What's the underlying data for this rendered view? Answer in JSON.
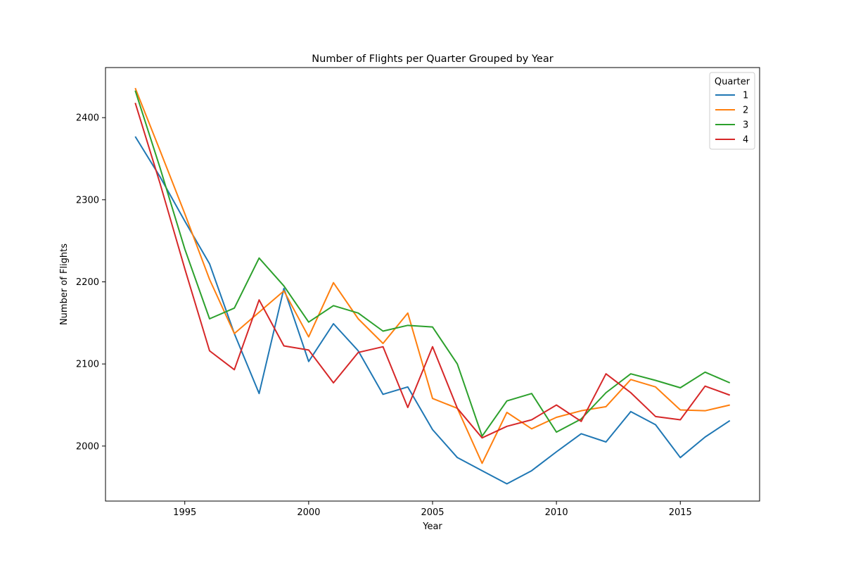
{
  "chart_data": {
    "type": "line",
    "title": "Number of Flights per Quarter Grouped by Year",
    "xlabel": "Year",
    "ylabel": "Number of Flights",
    "x": [
      1993,
      1994,
      1995,
      1996,
      1997,
      1998,
      1999,
      2000,
      2001,
      2002,
      2003,
      2004,
      2005,
      2006,
      2007,
      2008,
      2009,
      2010,
      2011,
      2012,
      2013,
      2014,
      2015,
      2016,
      2017
    ],
    "xlim": [
      1991.8,
      2018.2
    ],
    "ylim": [
      1933,
      2461
    ],
    "xticks": [
      1995,
      2000,
      2005,
      2010,
      2015
    ],
    "yticks": [
      2000,
      2100,
      2200,
      2300,
      2400
    ],
    "grid": false,
    "legend": {
      "title": "Quarter",
      "position": "upper right"
    },
    "series": [
      {
        "name": "1",
        "color": "#1f77b4",
        "values": [
          2377,
          2328,
          2274,
          2222,
          2137,
          2064,
          2192,
          2103,
          2149,
          2116,
          2063,
          2072,
          2020,
          1986,
          1970,
          1954,
          1970,
          1993,
          2015,
          2005,
          2042,
          2026,
          1986,
          2011,
          2031
        ]
      },
      {
        "name": "2",
        "color": "#ff7f0e",
        "values": [
          2436,
          2360,
          2283,
          2203,
          2137,
          2163,
          2189,
          2133,
          2199,
          2155,
          2125,
          2162,
          2058,
          2046,
          1979,
          2041,
          2021,
          2035,
          2043,
          2048,
          2081,
          2072,
          2044,
          2043,
          2050
        ]
      },
      {
        "name": "3",
        "color": "#2ca02c",
        "values": [
          2433,
          2339,
          2240,
          2155,
          2168,
          2229,
          2195,
          2151,
          2171,
          2162,
          2140,
          2147,
          2145,
          2100,
          2012,
          2055,
          2064,
          2017,
          2033,
          2065,
          2088,
          2080,
          2071,
          2090,
          2077
        ]
      },
      {
        "name": "4",
        "color": "#d62728",
        "values": [
          2418,
          2320,
          2216,
          2116,
          2093,
          2178,
          2122,
          2117,
          2077,
          2114,
          2121,
          2047,
          2121,
          2046,
          2010,
          2024,
          2032,
          2050,
          2030,
          2088,
          2065,
          2036,
          2032,
          2073,
          2062
        ]
      }
    ]
  }
}
